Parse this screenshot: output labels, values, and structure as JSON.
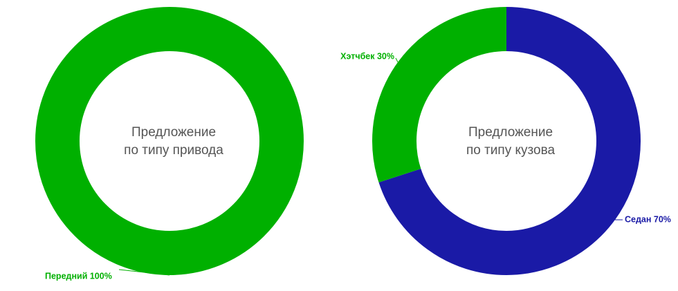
{
  "chart_data": [
    {
      "type": "donut",
      "title": [
        "Предложение",
        "по типу привода"
      ],
      "values": [
        100
      ],
      "value_labels": [
        "Передний 100%"
      ],
      "colors": [
        "#00b000"
      ]
    },
    {
      "type": "donut",
      "title": [
        "Предложение",
        "по типу кузова"
      ],
      "values": [
        70,
        30
      ],
      "value_labels": [
        "Седан 70%",
        "Хэтчбек 30%"
      ],
      "colors": [
        "#1a1aa6",
        "#00b000"
      ]
    }
  ]
}
